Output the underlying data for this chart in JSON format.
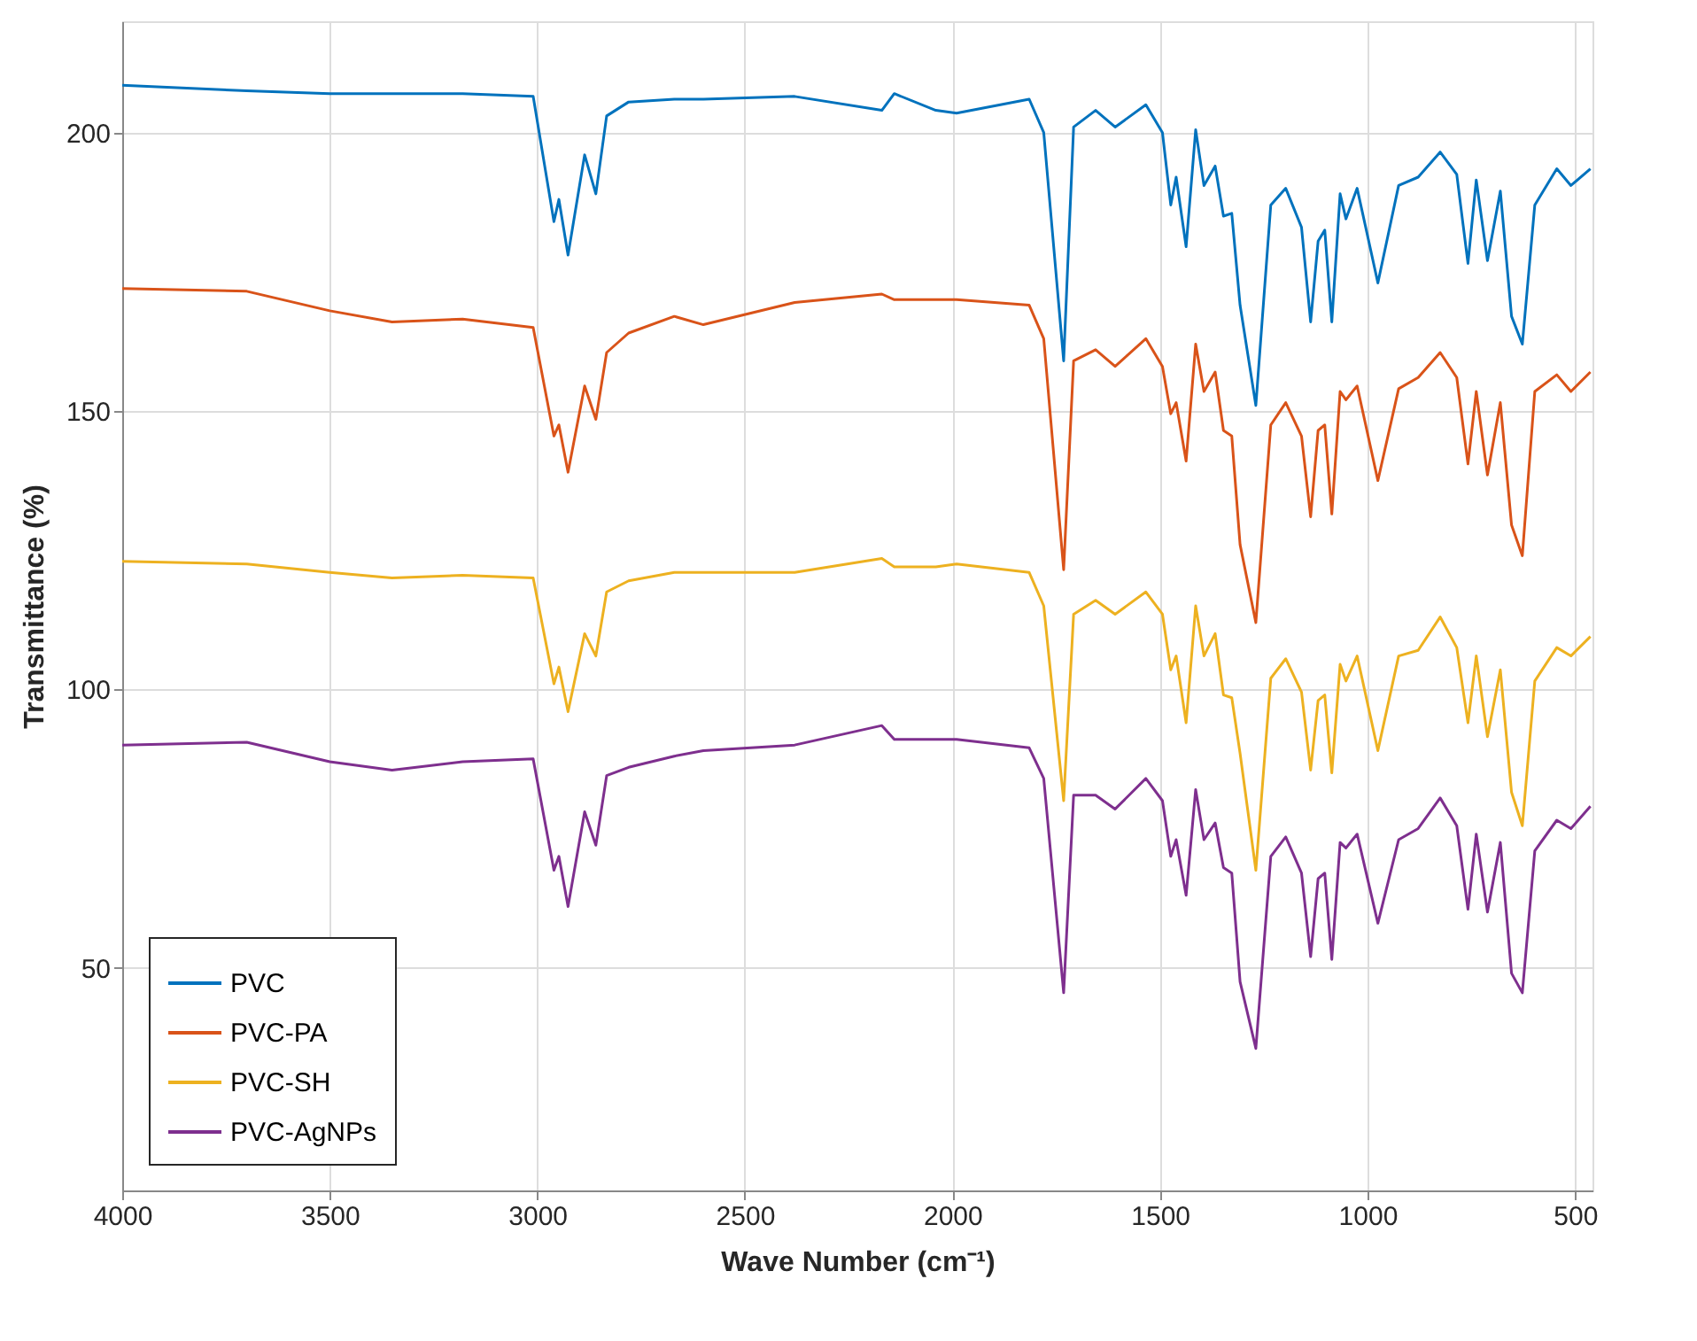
{
  "chart_data": {
    "type": "line",
    "xlabel": "Wave Number (cm⁻¹)",
    "ylabel": "Transmittance (%)",
    "x": [
      4000,
      3700,
      3500,
      3350,
      3180,
      3010,
      2960,
      2948,
      2926,
      2886,
      2859,
      2833,
      2780,
      2670,
      2600,
      2380,
      2170,
      2140,
      2040,
      1990,
      1815,
      1780,
      1732,
      1708,
      1655,
      1608,
      1534,
      1494,
      1474,
      1461,
      1437,
      1414,
      1394,
      1367,
      1347,
      1327,
      1307,
      1269,
      1233,
      1197,
      1159,
      1137,
      1119,
      1103,
      1086,
      1066,
      1052,
      1025,
      975,
      925,
      878,
      825,
      785,
      758,
      738,
      711,
      680,
      653,
      627,
      597,
      544,
      510,
      463
    ],
    "series": [
      {
        "name": "PVC",
        "color": "#0072bd",
        "values": [
          208.5,
          207.5,
          207,
          207,
          207,
          206.5,
          184,
          188,
          178,
          196,
          189,
          203,
          205.5,
          206,
          206,
          206.5,
          204,
          207,
          204,
          203.5,
          206,
          200,
          159,
          201,
          204,
          201,
          205,
          200,
          187,
          192,
          179.5,
          200.5,
          190.5,
          194,
          185,
          185.5,
          169,
          151,
          187,
          190,
          183,
          166,
          180.5,
          182.5,
          166,
          189,
          184.5,
          190,
          173,
          190.5,
          192,
          196.5,
          192.5,
          176.5,
          191.5,
          177,
          189.5,
          167,
          162,
          187,
          193.5,
          190.5,
          193.5
        ]
      },
      {
        "name": "PVC-PA",
        "color": "#d95319",
        "values": [
          172,
          171.5,
          168,
          166,
          166.5,
          165,
          145.5,
          147.5,
          139,
          154.5,
          148.5,
          160.5,
          164,
          167,
          165.5,
          169.5,
          171,
          170,
          170,
          170,
          169,
          163,
          121.5,
          159,
          161,
          158,
          163,
          158,
          149.5,
          151.5,
          141,
          162,
          153.5,
          157,
          146.5,
          145.5,
          126,
          112,
          147.5,
          151.5,
          145.5,
          131,
          146.5,
          147.5,
          131.5,
          153.5,
          152,
          154.5,
          137.5,
          154,
          156,
          160.5,
          156,
          140.5,
          153.5,
          138.5,
          151.5,
          129.5,
          124,
          153.5,
          156.5,
          153.5,
          157
        ]
      },
      {
        "name": "PVC-SH",
        "color": "#edb120",
        "values": [
          123,
          122.5,
          121,
          120,
          120.5,
          120,
          101,
          104,
          96,
          110,
          106,
          117.5,
          119.5,
          121,
          121,
          121,
          123.5,
          122,
          122,
          122.5,
          121,
          115,
          80,
          113.5,
          116,
          113.5,
          117.5,
          113.5,
          103.5,
          106,
          94,
          115,
          106,
          110,
          99,
          98.5,
          88.5,
          67.5,
          102,
          105.5,
          99.5,
          85.5,
          98,
          99,
          85,
          104.5,
          101.5,
          106,
          89,
          106,
          107,
          113,
          107.5,
          94,
          106,
          91.5,
          103.5,
          81.5,
          75.5,
          101.5,
          107.5,
          106,
          109.5
        ]
      },
      {
        "name": "PVC-AgNPs",
        "color": "#7e2f8e",
        "values": [
          90,
          90.5,
          87,
          85.5,
          87,
          87.5,
          67.5,
          70,
          61,
          78,
          72,
          84.5,
          86,
          88,
          89,
          90,
          93.5,
          91,
          91,
          91,
          89.5,
          84,
          45.5,
          81,
          81,
          78.5,
          84,
          80,
          70,
          73,
          63,
          82,
          73,
          76,
          68,
          67,
          47.5,
          35.5,
          70,
          73.5,
          67,
          52,
          66,
          67,
          51.5,
          72.5,
          71.5,
          74,
          58,
          73,
          75,
          80.5,
          75.5,
          60.5,
          74,
          60,
          72.5,
          49,
          45.5,
          71,
          76.5,
          75,
          79
        ]
      }
    ],
    "xlim": [
      4000,
      458
    ],
    "xticks": [
      4000,
      3500,
      3000,
      2500,
      2000,
      1500,
      1000,
      500
    ],
    "ylim": [
      10,
      220
    ],
    "yticks": [
      50,
      100,
      150,
      200
    ],
    "grid": true,
    "legend": "bottom left",
    "marker": "none",
    "line_style": "solid"
  }
}
